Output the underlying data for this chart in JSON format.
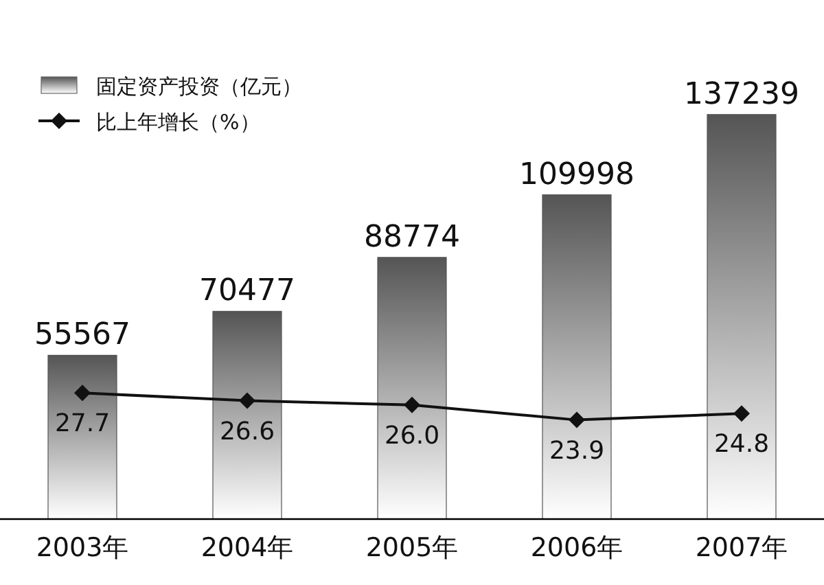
{
  "chart_data": {
    "type": "bar",
    "categories": [
      "2003年",
      "2004年",
      "2005年",
      "2006年",
      "2007年"
    ],
    "series": [
      {
        "name": "固定资产投资（亿元）",
        "color": "#555555",
        "values": [
          55567,
          70477,
          88774,
          109998,
          137239
        ]
      },
      {
        "name": "比上年增长（%）",
        "type": "line",
        "axis": "y2",
        "color": "#111111",
        "values": [
          27.7,
          26.6,
          26.0,
          23.9,
          24.8
        ],
        "value_labels": [
          "27.7",
          "26.6",
          "26.0",
          "23.9",
          "24.8"
        ]
      }
    ],
    "ylim": [
      0,
      150000
    ],
    "y2lim": [
      10,
      72
    ],
    "data_labels": true,
    "legend": "top left",
    "marker": "diamond",
    "tick_labels": "x",
    "grid": false
  }
}
